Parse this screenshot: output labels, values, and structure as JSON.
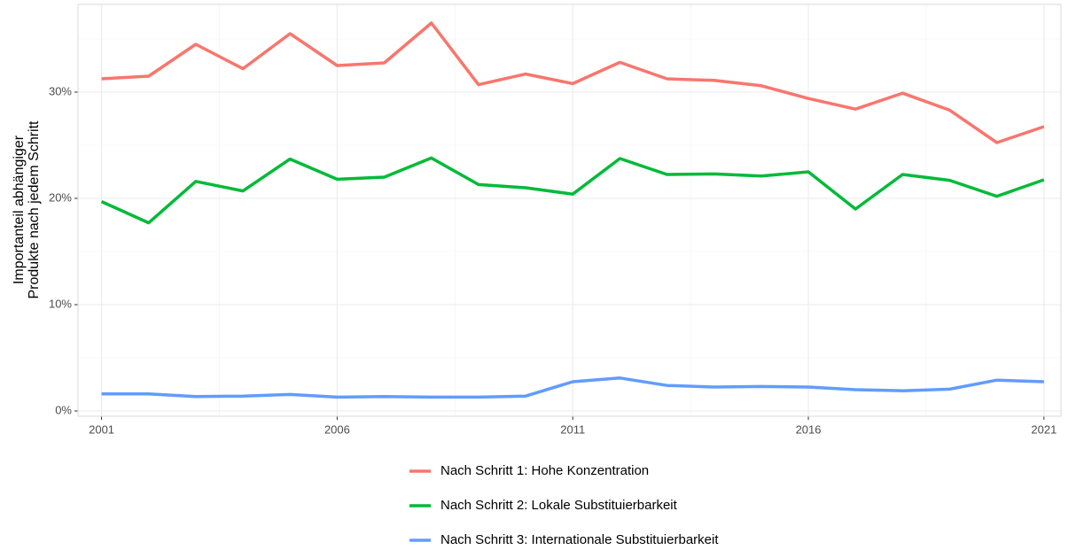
{
  "chart_data": {
    "type": "line",
    "ylabel": [
      "Importanteil abhängiger",
      "Produkte nach jedem Schritt"
    ],
    "x": [
      2001,
      2002,
      2003,
      2004,
      2005,
      2006,
      2007,
      2008,
      2009,
      2010,
      2011,
      2012,
      2013,
      2014,
      2015,
      2016,
      2017,
      2018,
      2019,
      2020,
      2021
    ],
    "series": [
      {
        "name": "Nach Schritt 1: Hohe Konzentration",
        "color": "#F8766D",
        "values": [
          31.25,
          31.5,
          34.5,
          32.2,
          35.5,
          32.5,
          32.75,
          36.5,
          30.7,
          31.7,
          30.8,
          32.8,
          31.25,
          31.1,
          30.6,
          29.4,
          28.4,
          29.9,
          28.3,
          25.25,
          26.75
        ]
      },
      {
        "name": "Nach Schritt 2: Lokale Substituierbarkeit",
        "color": "#00BA38",
        "values": [
          19.7,
          17.7,
          21.6,
          20.7,
          23.7,
          21.8,
          22.0,
          23.8,
          21.3,
          21.0,
          20.4,
          23.75,
          22.25,
          22.3,
          22.1,
          22.5,
          19.0,
          22.25,
          21.7,
          20.2,
          21.75
        ]
      },
      {
        "name": "Nach Schritt 3: Internationale Substituierbarkeit",
        "color": "#619CFF",
        "values": [
          1.6,
          1.6,
          1.35,
          1.4,
          1.55,
          1.3,
          1.35,
          1.3,
          1.3,
          1.4,
          2.75,
          3.1,
          2.4,
          2.25,
          2.3,
          2.25,
          2.0,
          1.9,
          2.05,
          2.9,
          2.75
        ]
      }
    ],
    "xlim": [
      2000.5,
      2021.36
    ],
    "xticks": [
      2001,
      2006,
      2011,
      2016,
      2021
    ],
    "ylim": [
      -0.5,
      38.25
    ],
    "yticks": [
      {
        "value": 0,
        "label": "0%"
      },
      {
        "value": 10,
        "label": "10%"
      },
      {
        "value": 20,
        "label": "20%"
      },
      {
        "value": 30,
        "label": "30%"
      }
    ],
    "grid": true,
    "legend": "bottom"
  }
}
